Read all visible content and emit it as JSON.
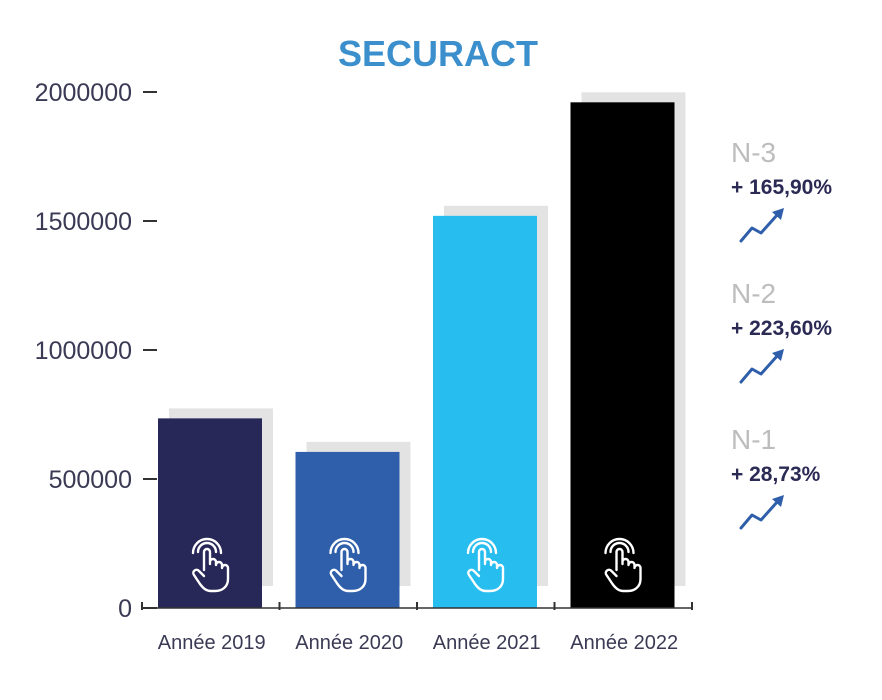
{
  "chart_data": {
    "type": "bar",
    "title": "SECURACT",
    "categories": [
      "Année 2019",
      "Année 2020",
      "Année 2021",
      "Année 2022"
    ],
    "values": [
      735000,
      605000,
      1520000,
      1960000
    ],
    "ylim": [
      0,
      2000000
    ],
    "yticks": [
      0,
      500000,
      1000000,
      1500000,
      2000000
    ],
    "ytick_labels": [
      "0",
      "500000",
      "1000000",
      "1500000",
      "2000000"
    ],
    "grid": false,
    "bar_colors": [
      "#282858",
      "#2f5faa",
      "#27bdef",
      "#000000"
    ],
    "title_color": "#3a8fcc",
    "bar_icon": "pointing-hand-icon"
  },
  "annotations": [
    {
      "label": "N-3",
      "value": "+ 165,90%",
      "icon": "trend-up-icon"
    },
    {
      "label": "N-2",
      "value": "+ 223,60%",
      "icon": "trend-up-icon"
    },
    {
      "label": "N-1",
      "value": "+ 28,73%",
      "icon": "trend-up-icon"
    }
  ],
  "colors": {
    "annotation_label": "#bdbdbd",
    "annotation_value": "#2a2a55",
    "trend_icon": "#2f5faa"
  }
}
